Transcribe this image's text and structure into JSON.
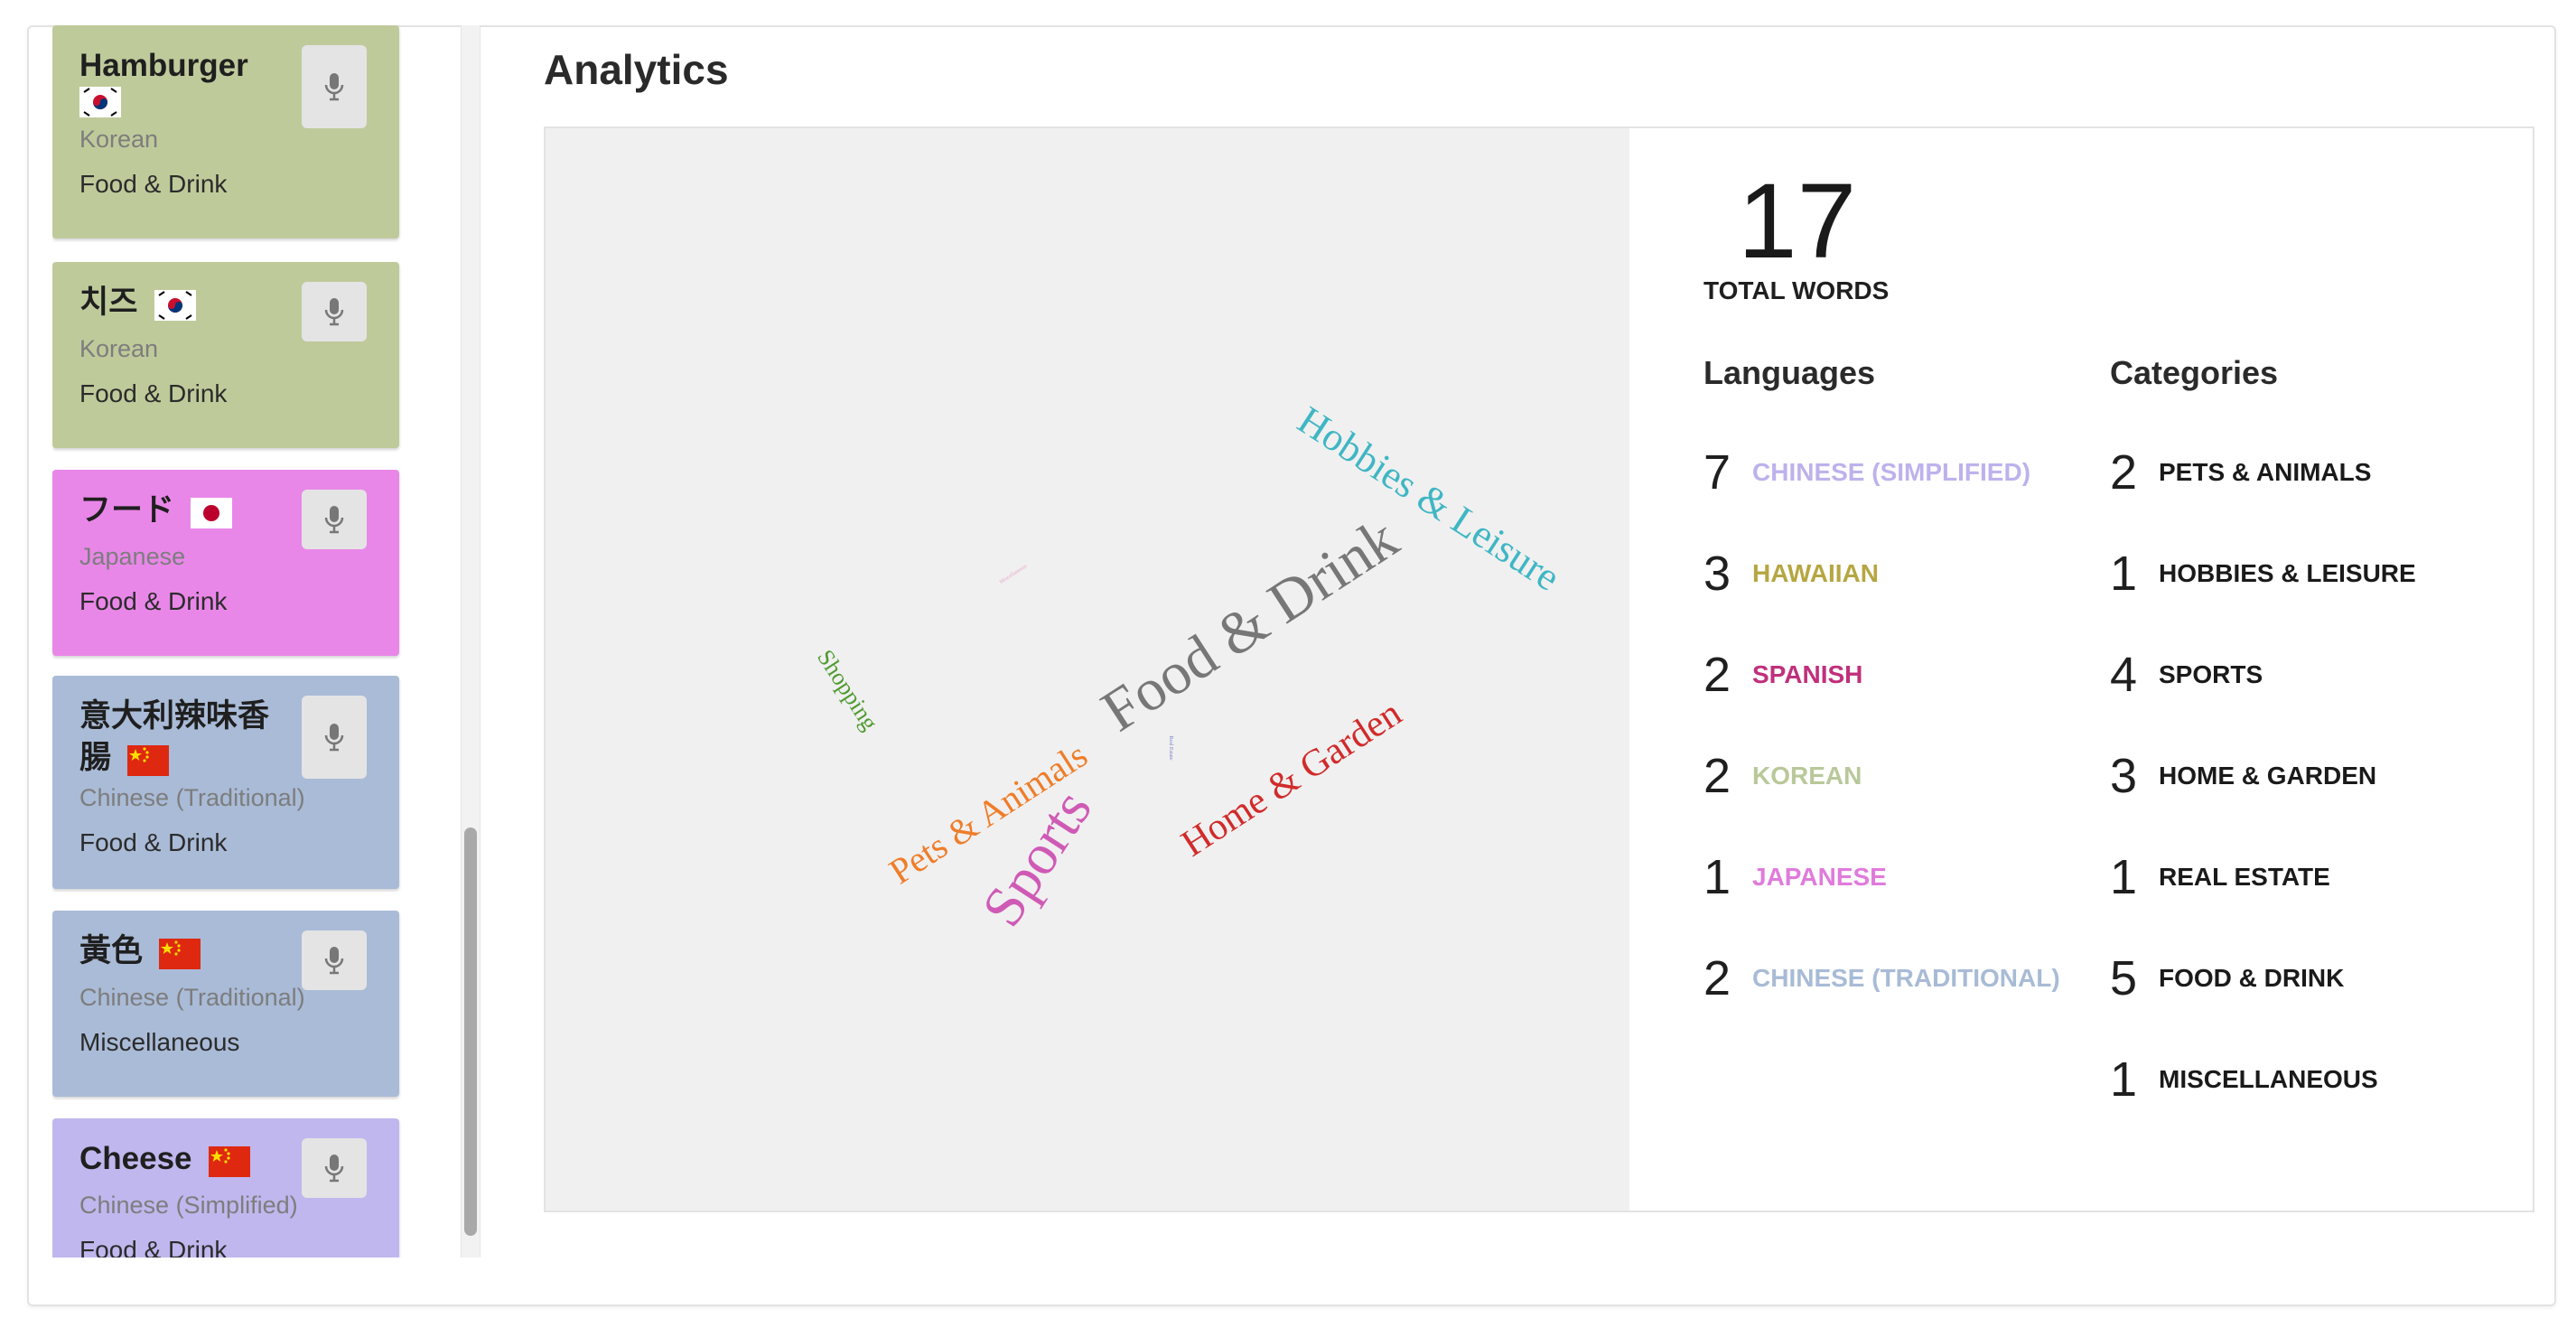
{
  "words": [
    {
      "title": "Hamburger",
      "language": "Korean",
      "category": "Food & Drink",
      "color": "#bfca9b",
      "flag": "kr"
    },
    {
      "title": "치즈",
      "language": "Korean",
      "category": "Food & Drink",
      "color": "#bfca9b",
      "flag": "kr"
    },
    {
      "title": "フード",
      "language": "Japanese",
      "category": "Food & Drink",
      "color": "#e987e8",
      "flag": "jp"
    },
    {
      "title": "意大利辣味香腸",
      "language": "Chinese (Traditional)",
      "category": "Food & Drink",
      "color": "#a9bbd7",
      "flag": "cn"
    },
    {
      "title": "黃色",
      "language": "Chinese (Traditional)",
      "category": "Miscellaneous",
      "color": "#a9bbd7",
      "flag": "cn"
    },
    {
      "title": "Cheese",
      "language": "Chinese (Simplified)",
      "category": "Food & Drink",
      "color": "#c0b7ee",
      "flag": "cn"
    }
  ],
  "analytics": {
    "title": "Analytics",
    "total_words": "17",
    "total_label": "TOTAL WORDS",
    "languages_heading": "Languages",
    "categories_heading": "Categories",
    "languages": [
      {
        "count": "7",
        "label": "CHINESE (SIMPLIFIED)",
        "color": "#bdb2ec"
      },
      {
        "count": "3",
        "label": "HAWAIIAN",
        "color": "#b6a642"
      },
      {
        "count": "2",
        "label": "SPANISH",
        "color": "#c0307c"
      },
      {
        "count": "2",
        "label": "KOREAN",
        "color": "#b9c89a"
      },
      {
        "count": "1",
        "label": "JAPANESE",
        "color": "#e07bdc"
      },
      {
        "count": "2",
        "label": "CHINESE (TRADITIONAL)",
        "color": "#a8bbd6"
      }
    ],
    "categories": [
      {
        "count": "2",
        "label": "PETS & ANIMALS"
      },
      {
        "count": "1",
        "label": "HOBBIES & LEISURE"
      },
      {
        "count": "4",
        "label": "SPORTS"
      },
      {
        "count": "3",
        "label": "HOME & GARDEN"
      },
      {
        "count": "1",
        "label": "REAL ESTATE"
      },
      {
        "count": "5",
        "label": "FOOD & DRINK"
      },
      {
        "count": "1",
        "label": "MISCELLANEOUS"
      }
    ]
  },
  "word_cloud": [
    {
      "text": "Food & Drink",
      "color": "#777777"
    },
    {
      "text": "Hobbies & Leisure",
      "color": "#3fb6c4"
    },
    {
      "text": "Home & Garden",
      "color": "#d12b2b"
    },
    {
      "text": "Pets & Animals",
      "color": "#ef7d2a"
    },
    {
      "text": "Sports",
      "color": "#cf5ab5"
    },
    {
      "text": "Shopping",
      "color": "#4e9a2f"
    },
    {
      "text": "Miscellaneous",
      "color": "#e7a7c9"
    },
    {
      "text": "Real Estate",
      "color": "#7b87c7"
    }
  ],
  "icons": {
    "mic": "microphone-icon"
  }
}
